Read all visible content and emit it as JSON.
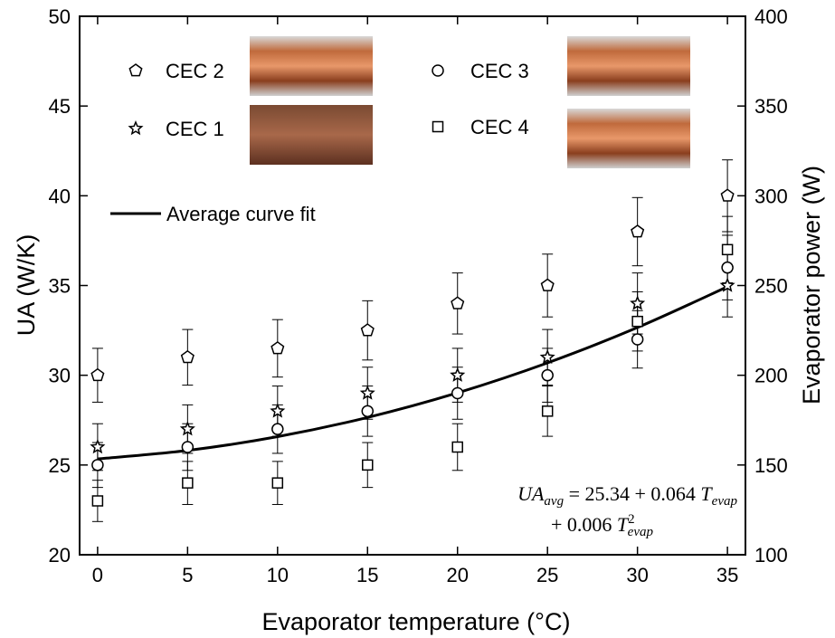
{
  "chart_data": {
    "type": "scatter",
    "xlabel": "Evaporator temperature  (°C)",
    "ylabel": "UA (W/K)",
    "y2label": "Evaporator power (W)",
    "x": [
      0,
      5,
      10,
      15,
      20,
      25,
      30,
      35
    ],
    "xlim": [
      -1,
      36
    ],
    "xticks": [
      0,
      5,
      10,
      15,
      20,
      25,
      30,
      35
    ],
    "ylim": [
      20,
      50
    ],
    "yticks": [
      20,
      25,
      30,
      35,
      40,
      45,
      50
    ],
    "y2lim": [
      100,
      400
    ],
    "y2ticks": [
      100,
      150,
      200,
      250,
      300,
      350,
      400
    ],
    "color": "#000000",
    "series": [
      {
        "name": "CEC 2",
        "marker": "pentagon",
        "values": [
          30,
          31,
          31.5,
          32.5,
          34,
          35,
          38,
          40
        ],
        "errors": [
          1.5,
          1.55,
          1.6,
          1.65,
          1.7,
          1.75,
          1.9,
          2.0
        ]
      },
      {
        "name": "CEC 1",
        "marker": "star",
        "values": [
          26,
          27,
          28,
          29,
          30,
          31,
          34,
          35
        ],
        "errors": [
          1.3,
          1.35,
          1.4,
          1.45,
          1.5,
          1.55,
          1.7,
          1.75
        ]
      },
      {
        "name": "CEC 3",
        "marker": "circle",
        "values": [
          25,
          26,
          27,
          28,
          29,
          30,
          32,
          36
        ],
        "errors": [
          1.25,
          1.3,
          1.35,
          1.4,
          1.45,
          1.5,
          1.6,
          1.8
        ]
      },
      {
        "name": "CEC 4",
        "marker": "square",
        "values": [
          23,
          24,
          24,
          25,
          26,
          28,
          33,
          37
        ],
        "errors": [
          1.15,
          1.2,
          1.2,
          1.25,
          1.3,
          1.4,
          1.65,
          1.85
        ]
      }
    ],
    "fit": {
      "name": "Average curve fit",
      "values": [
        25.34,
        25.81,
        26.58,
        27.65,
        29.02,
        30.69,
        32.66,
        34.93
      ]
    },
    "equation": {
      "line1": [
        "UA",
        "avg",
        " = 25.34 + 0.064 ",
        "T",
        "evap"
      ],
      "line2": [
        "+ 0.006 ",
        "T",
        "2",
        "evap"
      ]
    }
  }
}
